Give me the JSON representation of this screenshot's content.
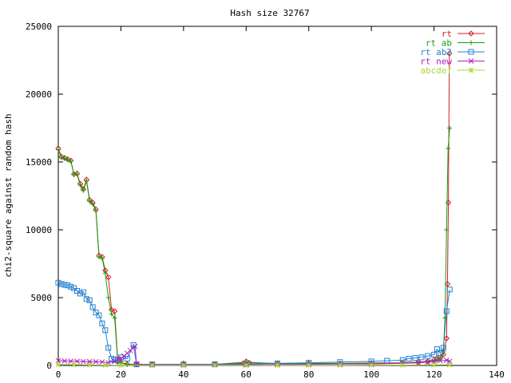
{
  "chart_data": {
    "type": "line",
    "title": "Hash size 32767",
    "xlabel": "",
    "ylabel": "chi2-square against random hash",
    "xlim": [
      0,
      140
    ],
    "ylim": [
      0,
      25000
    ],
    "xticks": [
      0,
      20,
      40,
      60,
      80,
      100,
      120,
      140
    ],
    "yticks": [
      0,
      5000,
      10000,
      15000,
      20000,
      25000
    ],
    "grid": false,
    "legend_position": "top-right",
    "series": [
      {
        "name": "rt",
        "color": "#d42020",
        "marker": "diamond",
        "points": [
          [
            0,
            16000
          ],
          [
            1,
            15400
          ],
          [
            2,
            15300
          ],
          [
            3,
            15200
          ],
          [
            4,
            15100
          ],
          [
            5,
            14100
          ],
          [
            6,
            14150
          ],
          [
            7,
            13400
          ],
          [
            8,
            13000
          ],
          [
            9,
            13700
          ],
          [
            10,
            12200
          ],
          [
            11,
            12000
          ],
          [
            12,
            11500
          ],
          [
            13,
            8100
          ],
          [
            14,
            8000
          ],
          [
            15,
            7000
          ],
          [
            16,
            6500
          ],
          [
            17,
            4100
          ],
          [
            18,
            4000
          ],
          [
            19,
            300
          ],
          [
            20,
            200
          ],
          [
            22,
            100
          ],
          [
            25,
            80
          ],
          [
            30,
            80
          ],
          [
            40,
            80
          ],
          [
            50,
            90
          ],
          [
            59,
            150
          ],
          [
            60,
            300
          ],
          [
            61,
            200
          ],
          [
            70,
            150
          ],
          [
            80,
            150
          ],
          [
            90,
            150
          ],
          [
            100,
            180
          ],
          [
            110,
            200
          ],
          [
            115,
            250
          ],
          [
            118,
            300
          ],
          [
            120,
            400
          ],
          [
            121,
            500
          ],
          [
            122,
            600
          ],
          [
            123,
            800
          ],
          [
            124,
            2000
          ],
          [
            124.3,
            6000
          ],
          [
            124.6,
            12000
          ],
          [
            124.9,
            23000
          ]
        ]
      },
      {
        "name": "rt ab",
        "color": "#10a010",
        "marker": "plus",
        "points": [
          [
            0,
            15900
          ],
          [
            1,
            15300
          ],
          [
            2,
            15250
          ],
          [
            3,
            15150
          ],
          [
            4,
            15050
          ],
          [
            5,
            14100
          ],
          [
            6,
            14100
          ],
          [
            7,
            13300
          ],
          [
            8,
            12900
          ],
          [
            9,
            13600
          ],
          [
            10,
            12100
          ],
          [
            11,
            11900
          ],
          [
            12,
            11400
          ],
          [
            13,
            8000
          ],
          [
            14,
            7900
          ],
          [
            15,
            6800
          ],
          [
            16,
            5000
          ],
          [
            17,
            3800
          ],
          [
            18,
            3500
          ],
          [
            19,
            200
          ],
          [
            20,
            150
          ],
          [
            22,
            80
          ],
          [
            25,
            60
          ],
          [
            30,
            60
          ],
          [
            40,
            70
          ],
          [
            50,
            80
          ],
          [
            60,
            250
          ],
          [
            70,
            120
          ],
          [
            80,
            130
          ],
          [
            90,
            140
          ],
          [
            100,
            150
          ],
          [
            110,
            170
          ],
          [
            115,
            200
          ],
          [
            118,
            250
          ],
          [
            120,
            300
          ],
          [
            121,
            400
          ],
          [
            122,
            500
          ],
          [
            123,
            1000
          ],
          [
            123.5,
            3500
          ],
          [
            124,
            10000
          ],
          [
            124.5,
            16000
          ],
          [
            125,
            17500
          ]
        ]
      },
      {
        "name": "rt ab2",
        "color": "#2080d0",
        "marker": "square",
        "points": [
          [
            0,
            6100
          ],
          [
            1,
            6000
          ],
          [
            2,
            5950
          ],
          [
            3,
            5900
          ],
          [
            4,
            5800
          ],
          [
            5,
            5700
          ],
          [
            6,
            5500
          ],
          [
            7,
            5300
          ],
          [
            8,
            5400
          ],
          [
            9,
            4900
          ],
          [
            10,
            4800
          ],
          [
            11,
            4300
          ],
          [
            12,
            3900
          ],
          [
            13,
            3700
          ],
          [
            14,
            3100
          ],
          [
            15,
            2600
          ],
          [
            16,
            1300
          ],
          [
            17,
            500
          ],
          [
            18,
            400
          ],
          [
            19,
            400
          ],
          [
            20,
            600
          ],
          [
            22,
            500
          ],
          [
            24,
            1500
          ],
          [
            25,
            80
          ],
          [
            30,
            80
          ],
          [
            40,
            80
          ],
          [
            50,
            90
          ],
          [
            60,
            100
          ],
          [
            70,
            150
          ],
          [
            80,
            200
          ],
          [
            90,
            250
          ],
          [
            100,
            300
          ],
          [
            105,
            350
          ],
          [
            110,
            400
          ],
          [
            112,
            500
          ],
          [
            114,
            550
          ],
          [
            116,
            600
          ],
          [
            118,
            700
          ],
          [
            120,
            800
          ],
          [
            121,
            1200
          ],
          [
            122,
            900
          ],
          [
            123,
            1300
          ],
          [
            124,
            4000
          ],
          [
            125,
            5600
          ]
        ]
      },
      {
        "name": "rt new",
        "color": "#b020c0",
        "marker": "cross",
        "points": [
          [
            0,
            350
          ],
          [
            2,
            330
          ],
          [
            4,
            310
          ],
          [
            6,
            300
          ],
          [
            8,
            290
          ],
          [
            10,
            280
          ],
          [
            12,
            270
          ],
          [
            14,
            250
          ],
          [
            16,
            200
          ],
          [
            18,
            300
          ],
          [
            19,
            500
          ],
          [
            20,
            500
          ],
          [
            21,
            700
          ],
          [
            22,
            900
          ],
          [
            23,
            1100
          ],
          [
            24,
            1300
          ],
          [
            24.5,
            1400
          ],
          [
            25,
            100
          ],
          [
            30,
            60
          ],
          [
            40,
            60
          ],
          [
            50,
            60
          ],
          [
            60,
            60
          ],
          [
            70,
            80
          ],
          [
            80,
            80
          ],
          [
            90,
            100
          ],
          [
            100,
            100
          ],
          [
            110,
            150
          ],
          [
            115,
            200
          ],
          [
            118,
            250
          ],
          [
            120,
            300
          ],
          [
            122,
            350
          ],
          [
            124,
            380
          ],
          [
            125,
            300
          ]
        ]
      },
      {
        "name": "abcdef",
        "color": "#a8d838",
        "marker": "star",
        "points": [
          [
            0,
            80
          ],
          [
            5,
            60
          ],
          [
            10,
            40
          ],
          [
            15,
            30
          ],
          [
            20,
            20
          ],
          [
            30,
            10
          ],
          [
            40,
            10
          ],
          [
            50,
            10
          ],
          [
            60,
            15
          ],
          [
            70,
            15
          ],
          [
            80,
            20
          ],
          [
            90,
            20
          ],
          [
            100,
            25
          ],
          [
            110,
            30
          ],
          [
            120,
            40
          ],
          [
            125,
            50
          ]
        ]
      }
    ]
  }
}
